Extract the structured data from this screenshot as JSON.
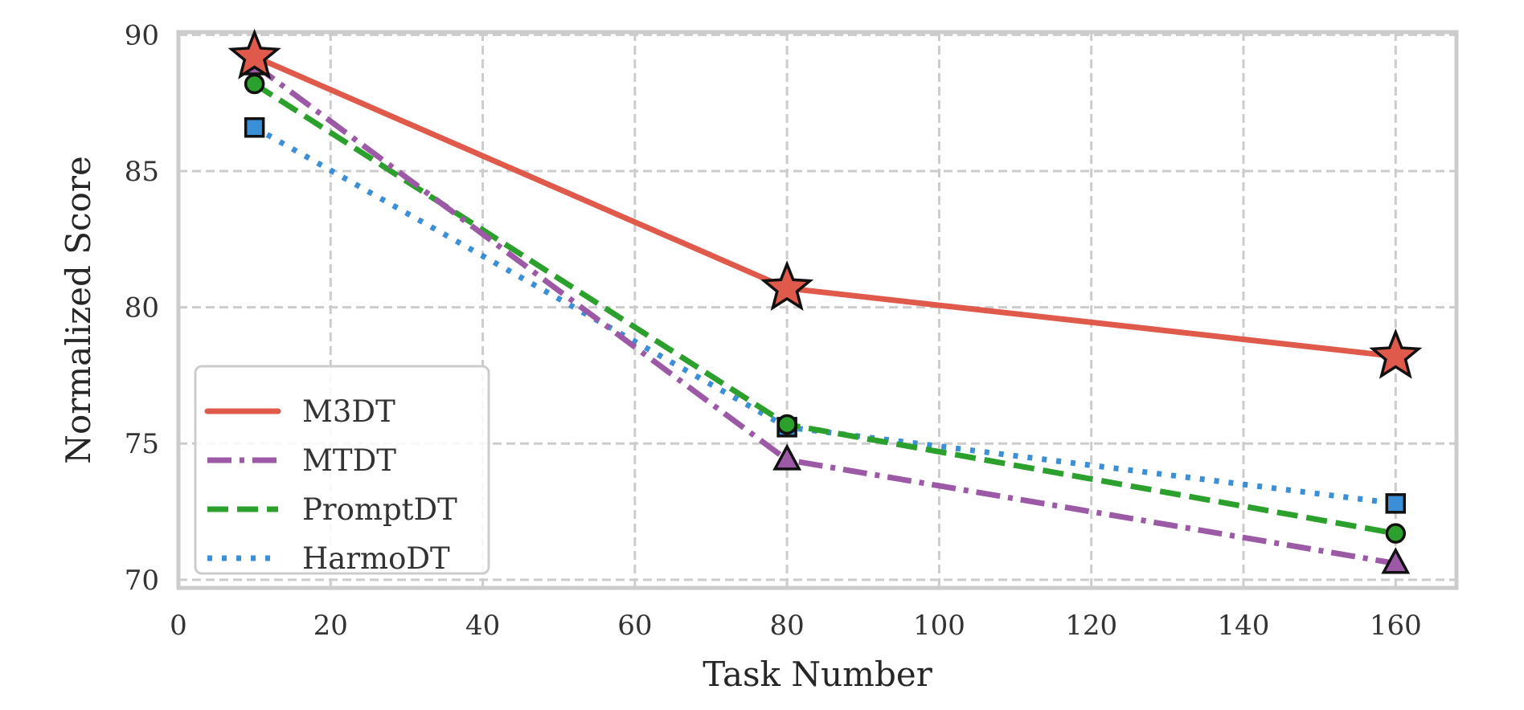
{
  "chart_data": {
    "type": "line",
    "xlabel": "Task Number",
    "ylabel": "Normalized Score",
    "xlim": [
      0,
      168
    ],
    "ylim": [
      69.7,
      90.1
    ],
    "xticks": [
      0,
      20,
      40,
      60,
      80,
      100,
      120,
      140,
      160
    ],
    "yticks": [
      70,
      75,
      80,
      85,
      90
    ],
    "grid": true,
    "legend_position": "lower-left",
    "x": [
      10,
      80,
      160
    ],
    "series": [
      {
        "name": "M3DT",
        "values": [
          89.2,
          80.7,
          78.2
        ],
        "color": "#e05a4b",
        "line_style": "solid",
        "marker": "star"
      },
      {
        "name": "MTDT",
        "values": [
          88.9,
          74.4,
          70.6
        ],
        "color": "#9b59a6",
        "line_style": "dashdot",
        "marker": "triangle"
      },
      {
        "name": "PromptDT",
        "values": [
          88.2,
          75.7,
          71.7
        ],
        "color": "#2ca02c",
        "line_style": "dashed",
        "marker": "circle"
      },
      {
        "name": "HarmoDT",
        "values": [
          86.6,
          75.6,
          72.8
        ],
        "color": "#3b8fd6",
        "line_style": "dotted",
        "marker": "square"
      }
    ]
  }
}
